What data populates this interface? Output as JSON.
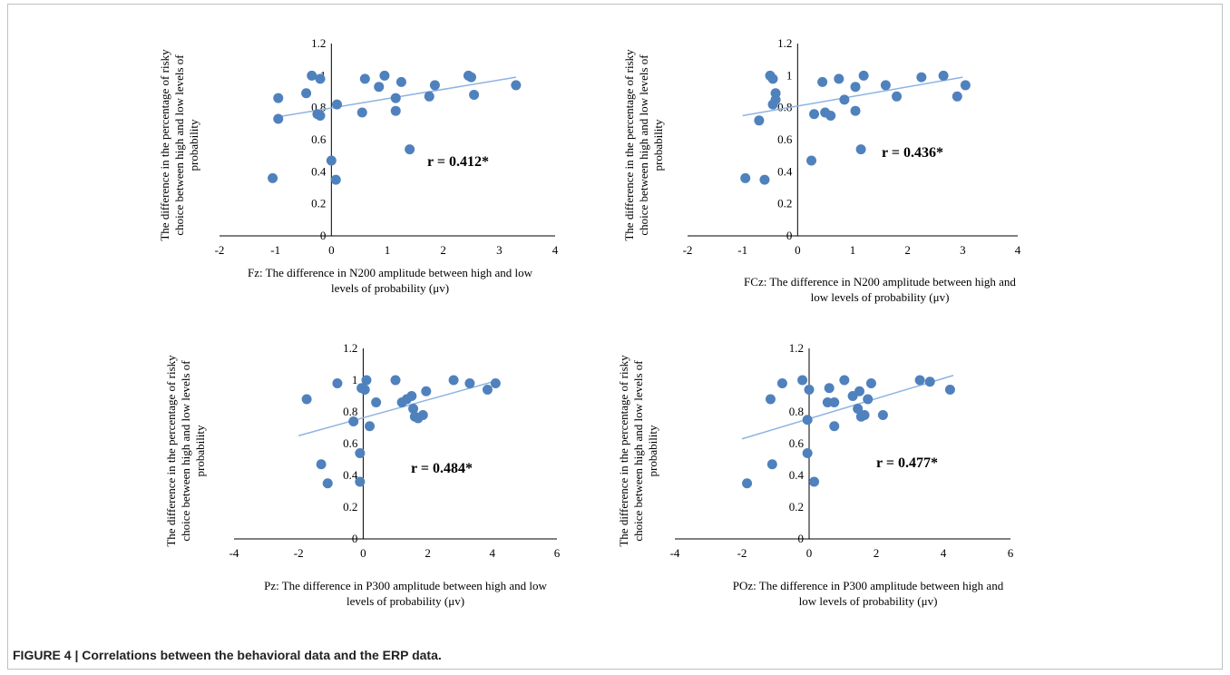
{
  "caption": "FIGURE 4 | Correlations between the behavioral data and the ERP data.",
  "colors": {
    "point": "#4f81bd",
    "trend": "#8db4e2",
    "axis": "#000000"
  },
  "chart_data": [
    {
      "type": "scatter",
      "ylabel_lines": [
        "The difference in the percentage of risky",
        "choice between high and low levels of",
        "probability"
      ],
      "xlabel_lines": [
        "Fz: The difference in N200 amplitude between high and low",
        "levels of probability (μv)"
      ],
      "annotation": "r = 0.412*",
      "xlim": [
        -2,
        4
      ],
      "ylim": [
        0,
        1.2
      ],
      "xticks": [
        -2,
        -1,
        0,
        1,
        2,
        3,
        4
      ],
      "yticks": [
        0.2,
        0.4,
        0.6,
        0.8,
        1,
        1.2
      ],
      "trend": {
        "x0": -1,
        "y0": 0.74,
        "x1": 3.3,
        "y1": 0.99
      },
      "points": [
        {
          "x": -1.05,
          "y": 0.36
        },
        {
          "x": -0.95,
          "y": 0.86
        },
        {
          "x": -0.95,
          "y": 0.73
        },
        {
          "x": -0.45,
          "y": 0.89
        },
        {
          "x": -0.35,
          "y": 1.0
        },
        {
          "x": -0.25,
          "y": 0.76
        },
        {
          "x": -0.2,
          "y": 0.98
        },
        {
          "x": -0.2,
          "y": 0.75
        },
        {
          "x": 0.0,
          "y": 0.47
        },
        {
          "x": 0.08,
          "y": 0.35
        },
        {
          "x": 0.1,
          "y": 0.82
        },
        {
          "x": 0.55,
          "y": 0.77
        },
        {
          "x": 0.6,
          "y": 0.98
        },
        {
          "x": 0.85,
          "y": 0.93
        },
        {
          "x": 0.95,
          "y": 1.0
        },
        {
          "x": 1.15,
          "y": 0.86
        },
        {
          "x": 1.15,
          "y": 0.78
        },
        {
          "x": 1.25,
          "y": 0.96
        },
        {
          "x": 1.4,
          "y": 0.54
        },
        {
          "x": 1.75,
          "y": 0.87
        },
        {
          "x": 1.85,
          "y": 0.94
        },
        {
          "x": 2.45,
          "y": 1.0
        },
        {
          "x": 2.5,
          "y": 0.99
        },
        {
          "x": 2.55,
          "y": 0.88
        },
        {
          "x": 3.3,
          "y": 0.94
        }
      ]
    },
    {
      "type": "scatter",
      "ylabel_lines": [
        "The difference in the percentage of risky",
        "choice between high and low levels of",
        "probability"
      ],
      "xlabel_lines": [
        "FCz: The difference in N200 amplitude between high and",
        "low levels of probability (μv)"
      ],
      "annotation": "r = 0.436*",
      "xlim": [
        -2,
        4
      ],
      "ylim": [
        0,
        1.2
      ],
      "xticks": [
        -2,
        -1,
        0,
        1,
        2,
        3,
        4
      ],
      "yticks": [
        0.2,
        0.4,
        0.6,
        0.8,
        1,
        1.2
      ],
      "trend": {
        "x0": -1,
        "y0": 0.75,
        "x1": 3.0,
        "y1": 0.99
      },
      "points": [
        {
          "x": -0.95,
          "y": 0.36
        },
        {
          "x": -0.7,
          "y": 0.72
        },
        {
          "x": -0.6,
          "y": 0.35
        },
        {
          "x": -0.5,
          "y": 1.0
        },
        {
          "x": -0.45,
          "y": 0.98
        },
        {
          "x": -0.4,
          "y": 0.89
        },
        {
          "x": -0.4,
          "y": 0.85
        },
        {
          "x": -0.45,
          "y": 0.82
        },
        {
          "x": 0.25,
          "y": 0.47
        },
        {
          "x": 0.3,
          "y": 0.76
        },
        {
          "x": 0.45,
          "y": 0.96
        },
        {
          "x": 0.5,
          "y": 0.77
        },
        {
          "x": 0.6,
          "y": 0.75
        },
        {
          "x": 0.75,
          "y": 0.98
        },
        {
          "x": 0.85,
          "y": 0.85
        },
        {
          "x": 1.05,
          "y": 0.93
        },
        {
          "x": 1.05,
          "y": 0.78
        },
        {
          "x": 1.15,
          "y": 0.54
        },
        {
          "x": 1.2,
          "y": 1.0
        },
        {
          "x": 1.6,
          "y": 0.94
        },
        {
          "x": 1.8,
          "y": 0.87
        },
        {
          "x": 2.25,
          "y": 0.99
        },
        {
          "x": 2.65,
          "y": 1.0
        },
        {
          "x": 2.9,
          "y": 0.87
        },
        {
          "x": 3.05,
          "y": 0.94
        }
      ]
    },
    {
      "type": "scatter",
      "ylabel_lines": [
        "The difference in the percentage of risky",
        "choice between high and low levels of",
        "probability"
      ],
      "xlabel_lines": [
        "Pz: The difference in P300 amplitude between high and low",
        "levels of probability (μv)"
      ],
      "annotation": "r = 0.484*",
      "xlim": [
        -4,
        6
      ],
      "ylim": [
        0,
        1.2
      ],
      "xticks": [
        -4,
        -2,
        0,
        2,
        4,
        6
      ],
      "yticks": [
        0.2,
        0.4,
        0.6,
        0.8,
        1,
        1.2
      ],
      "trend": {
        "x0": -2,
        "y0": 0.65,
        "x1": 4.2,
        "y1": 1.0
      },
      "points": [
        {
          "x": -1.75,
          "y": 0.88
        },
        {
          "x": -1.3,
          "y": 0.47
        },
        {
          "x": -1.1,
          "y": 0.35
        },
        {
          "x": -0.8,
          "y": 0.98
        },
        {
          "x": -0.3,
          "y": 0.74
        },
        {
          "x": -0.1,
          "y": 0.36
        },
        {
          "x": -0.1,
          "y": 0.54
        },
        {
          "x": -0.05,
          "y": 0.95
        },
        {
          "x": 0.05,
          "y": 0.94
        },
        {
          "x": 0.1,
          "y": 1.0
        },
        {
          "x": 0.2,
          "y": 0.71
        },
        {
          "x": 0.4,
          "y": 0.86
        },
        {
          "x": 1.0,
          "y": 1.0
        },
        {
          "x": 1.2,
          "y": 0.86
        },
        {
          "x": 1.35,
          "y": 0.88
        },
        {
          "x": 1.5,
          "y": 0.9
        },
        {
          "x": 1.55,
          "y": 0.82
        },
        {
          "x": 1.6,
          "y": 0.77
        },
        {
          "x": 1.7,
          "y": 0.76
        },
        {
          "x": 1.85,
          "y": 0.78
        },
        {
          "x": 1.95,
          "y": 0.93
        },
        {
          "x": 2.8,
          "y": 1.0
        },
        {
          "x": 3.3,
          "y": 0.98
        },
        {
          "x": 3.85,
          "y": 0.94
        },
        {
          "x": 4.1,
          "y": 0.98
        }
      ]
    },
    {
      "type": "scatter",
      "ylabel_lines": [
        "The difference in the percentage of risky",
        "choice between high and low levels of",
        "probability"
      ],
      "xlabel_lines": [
        "POz: The difference in P300 amplitude between high and",
        "low levels of probability (μv)"
      ],
      "annotation": "r = 0.477*",
      "xlim": [
        -4,
        6
      ],
      "ylim": [
        0,
        1.2
      ],
      "xticks": [
        -4,
        -2,
        0,
        2,
        4,
        6
      ],
      "yticks": [
        0.2,
        0.4,
        0.6,
        0.8,
        1,
        1.2
      ],
      "trend": {
        "x0": -2,
        "y0": 0.63,
        "x1": 4.3,
        "y1": 1.03
      },
      "points": [
        {
          "x": -1.85,
          "y": 0.35
        },
        {
          "x": -1.1,
          "y": 0.47
        },
        {
          "x": -1.15,
          "y": 0.88
        },
        {
          "x": -0.8,
          "y": 0.98
        },
        {
          "x": -0.2,
          "y": 1.0
        },
        {
          "x": 0.0,
          "y": 0.94
        },
        {
          "x": -0.05,
          "y": 0.75
        },
        {
          "x": -0.05,
          "y": 0.54
        },
        {
          "x": 0.15,
          "y": 0.36
        },
        {
          "x": 0.55,
          "y": 0.86
        },
        {
          "x": 0.6,
          "y": 0.95
        },
        {
          "x": 0.75,
          "y": 0.86
        },
        {
          "x": 0.75,
          "y": 0.71
        },
        {
          "x": 1.05,
          "y": 1.0
        },
        {
          "x": 1.3,
          "y": 0.9
        },
        {
          "x": 1.45,
          "y": 0.82
        },
        {
          "x": 1.5,
          "y": 0.93
        },
        {
          "x": 1.55,
          "y": 0.77
        },
        {
          "x": 1.65,
          "y": 0.78
        },
        {
          "x": 1.75,
          "y": 0.88
        },
        {
          "x": 1.85,
          "y": 0.98
        },
        {
          "x": 2.2,
          "y": 0.78
        },
        {
          "x": 3.3,
          "y": 1.0
        },
        {
          "x": 3.6,
          "y": 0.99
        },
        {
          "x": 4.2,
          "y": 0.94
        }
      ]
    }
  ]
}
